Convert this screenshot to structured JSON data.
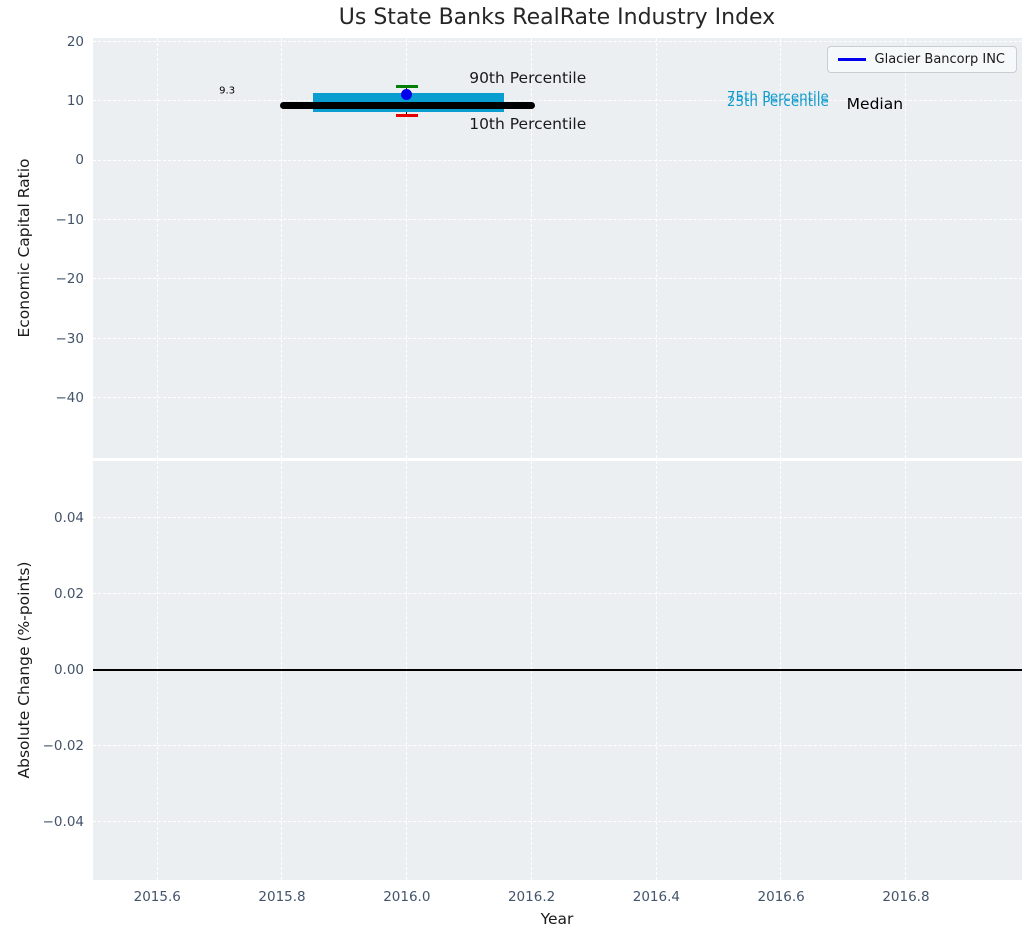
{
  "title": "Us State Banks RealRate Industry Index",
  "x_axis": {
    "label": "Year",
    "xlim": [
      2015.497,
      2016.986
    ],
    "tick_values": [
      2015.6,
      2015.8,
      2016.0,
      2016.2,
      2016.4,
      2016.6,
      2016.8
    ],
    "tick_labels": [
      "2015.6",
      "2015.8",
      "2016.0",
      "2016.2",
      "2016.4",
      "2016.6",
      "2016.8"
    ]
  },
  "colors": {
    "figure_bg": "#ffffff",
    "axes_bg": "#eceff1",
    "grid": "#ffffff",
    "tick_label": "#43546a",
    "text": "#1a1a1a",
    "title": "#262626",
    "median": "#000000",
    "iqr_band": "#0a9ed0",
    "p90_cap": "#007f00",
    "p10_cap": "#e60000",
    "company": "#0000ee",
    "zero_line": "#000000",
    "percentile_label": "#149bce",
    "stem": "#111111"
  },
  "chart_data": [
    {
      "type": "box-errorbar",
      "title": "Us State Banks RealRate Industry Index",
      "xlabel": "Year",
      "ylabel": "Economic Capital Ratio",
      "ylim": [
        -50.1,
        20.6
      ],
      "ytick_values": [
        20,
        10,
        0,
        -10,
        -20,
        -30,
        -40
      ],
      "ytick_labels": [
        "20",
        "10",
        "0",
        "−10",
        "−20",
        "−30",
        "−40"
      ],
      "grid": true,
      "legend": {
        "position": "upper right",
        "entries": [
          {
            "label": "Glacier Bancorp INC",
            "color": "#0000ee",
            "marker": "line"
          }
        ]
      },
      "x": 2016.0,
      "stats": {
        "median": 9.3,
        "median_label": "9.3",
        "median_x_span": [
          2015.797,
          2016.205
        ],
        "p25": 8.1,
        "p75": 11.4,
        "band_x_span": [
          2015.85,
          2016.156
        ],
        "p10": 7.6,
        "p90": 12.4,
        "cap_half_width": 0.018,
        "company_value": 11.1
      },
      "annotations": [
        {
          "text": "90th Percentile",
          "x": 2016.1,
          "y": 13.9,
          "size": 15.5,
          "color": "#1a1a1a",
          "halign": "left"
        },
        {
          "text": "10th Percentile",
          "x": 2016.1,
          "y": 6.2,
          "size": 15.5,
          "color": "#1a1a1a",
          "halign": "left"
        },
        {
          "text": "75th Percentile",
          "x": 2016.513,
          "y": 10.6,
          "size": 13.5,
          "color": "#149bce",
          "halign": "left"
        },
        {
          "text": "25th Percentile",
          "x": 2016.513,
          "y": 9.9,
          "size": 13.5,
          "color": "#149bce",
          "halign": "left"
        },
        {
          "text": "Median",
          "x": 2016.705,
          "y": 9.5,
          "size": 15.5,
          "color": "#000000",
          "halign": "left"
        },
        {
          "text": "9.3",
          "x": 2015.712,
          "y": 11.7,
          "size": 10,
          "color": "#000000",
          "halign": "center"
        }
      ]
    },
    {
      "type": "line",
      "ylabel": "Absolute Change (%-points)",
      "ylim": [
        -0.0553,
        0.055
      ],
      "ytick_values": [
        0.04,
        0.02,
        0,
        -0.02,
        -0.04
      ],
      "ytick_labels": [
        "0.04",
        "0.02",
        "0.00",
        "−0.02",
        "−0.04"
      ],
      "grid": true,
      "zero_line": 0.0
    }
  ]
}
